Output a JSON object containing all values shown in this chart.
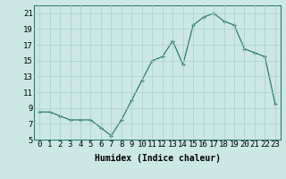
{
  "x": [
    0,
    1,
    2,
    3,
    4,
    5,
    6,
    7,
    8,
    9,
    10,
    11,
    12,
    13,
    14,
    15,
    16,
    17,
    18,
    19,
    20,
    21,
    22,
    23
  ],
  "y": [
    8.5,
    8.5,
    8.0,
    7.5,
    7.5,
    7.5,
    6.5,
    5.5,
    7.5,
    10.0,
    12.5,
    15.0,
    15.5,
    17.5,
    14.5,
    19.5,
    20.5,
    21.0,
    20.0,
    19.5,
    16.5,
    16.0,
    15.5,
    9.5
  ],
  "xlabel": "Humidex (Indice chaleur)",
  "ylim": [
    5,
    22
  ],
  "xlim": [
    -0.5,
    23.5
  ],
  "yticks": [
    5,
    7,
    9,
    11,
    13,
    15,
    17,
    19,
    21
  ],
  "xticks": [
    0,
    1,
    2,
    3,
    4,
    5,
    6,
    7,
    8,
    9,
    10,
    11,
    12,
    13,
    14,
    15,
    16,
    17,
    18,
    19,
    20,
    21,
    22,
    23
  ],
  "line_color": "#2e7d6e",
  "bg_color": "#cce8e4",
  "grid_color": "#aacfcb",
  "label_fontsize": 7,
  "tick_fontsize": 6.5
}
